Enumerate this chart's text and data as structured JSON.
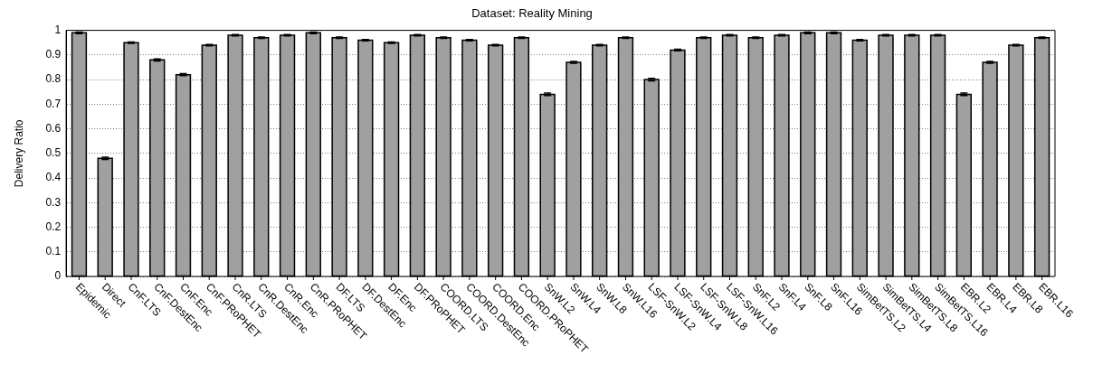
{
  "chart_data": {
    "type": "bar",
    "title": "Dataset: Reality Mining",
    "ylabel": "Delivery Ratio",
    "categories": [
      "Epidemic",
      "Direct",
      "CnF.LTS",
      "CnF.DestEnc",
      "CnF.Enc",
      "CnF.PRoPHET",
      "CnR.LTS",
      "CnR.DestEnc",
      "CnR.Enc",
      "CnR.PRoPHET",
      "DF.LTS",
      "DF.DestEnc",
      "DF.Enc",
      "DF.PRoPHET",
      "COORD.LTS",
      "COORD.DestEnc",
      "COORD.Enc",
      "COORD.PRoPHET",
      "SnW.L2",
      "SnW.L4",
      "SnW.L8",
      "SnW.L16",
      "LSF-SnW.L2",
      "LSF-SnW.L4",
      "LSF-SnW.L8",
      "LSF-SnW.L16",
      "SnF.L2",
      "SnF.L4",
      "SnF.L8",
      "SnF.L16",
      "SimBetTS.L2",
      "SimBetTS.L4",
      "SimBetTS.L8",
      "SimBetTS.L16",
      "EBR.L2",
      "EBR.L4",
      "EBR.L8",
      "EBR.L16"
    ],
    "values": [
      0.99,
      0.48,
      0.95,
      0.88,
      0.82,
      0.94,
      0.98,
      0.97,
      0.98,
      0.99,
      0.97,
      0.96,
      0.95,
      0.98,
      0.97,
      0.96,
      0.94,
      0.97,
      0.74,
      0.87,
      0.94,
      0.97,
      0.8,
      0.92,
      0.97,
      0.98,
      0.97,
      0.98,
      0.99,
      0.99,
      0.96,
      0.98,
      0.98,
      0.98,
      0.74,
      0.87,
      0.94,
      0.97
    ],
    "errors": [
      0.003,
      0.005,
      0.003,
      0.004,
      0.004,
      0.003,
      0.003,
      0.003,
      0.003,
      0.003,
      0.003,
      0.003,
      0.003,
      0.003,
      0.003,
      0.003,
      0.003,
      0.003,
      0.005,
      0.004,
      0.003,
      0.003,
      0.005,
      0.003,
      0.003,
      0.003,
      0.003,
      0.003,
      0.003,
      0.003,
      0.003,
      0.003,
      0.003,
      0.003,
      0.005,
      0.004,
      0.003,
      0.003
    ],
    "color": "#a0a0a0",
    "ylim": [
      0,
      1
    ],
    "yticks": [
      0,
      0.1,
      0.2,
      0.3,
      0.4,
      0.5,
      0.6,
      0.7,
      0.8,
      0.9,
      1
    ],
    "grid": "y",
    "legend": false
  }
}
